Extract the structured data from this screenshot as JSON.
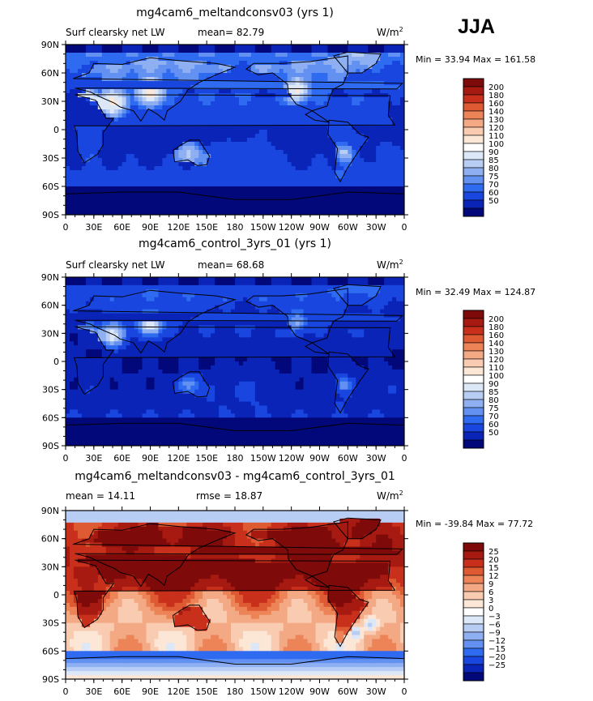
{
  "season": "JJA",
  "colors": {
    "frame": "#000000",
    "coast": "#000000",
    "land_outline": "#111111"
  },
  "chart_data": [
    {
      "type": "heatmap",
      "title": "mg4cam6_meltandconsv03 (yrs 1)",
      "left_label": "Surf clearsky net LW",
      "center_label": "mean=  82.79",
      "units_base": "W/m",
      "units_exp": "2",
      "minmax": "Min =  33.94 Max = 161.58",
      "stats": {
        "mean": 82.79,
        "min": 33.94,
        "max": 161.58
      },
      "ylabels": [
        "90N",
        "60N",
        "30N",
        "0",
        "30S",
        "60S",
        "90S"
      ],
      "xlabels": [
        "0",
        "30E",
        "60E",
        "90E",
        "120E",
        "150E",
        "180",
        "150W",
        "120W",
        "90W",
        "60W",
        "30W",
        "0"
      ],
      "colorbar_labels": [
        "200",
        "180",
        "160",
        "140",
        "130",
        "120",
        "110",
        "100",
        "90",
        "85",
        "80",
        "75",
        "70",
        "60",
        "50"
      ],
      "palette": [
        "#7f0a0a",
        "#a61a12",
        "#c8301c",
        "#de5a32",
        "#ec8458",
        "#f4a985",
        "#f9cbb0",
        "#fce6d6",
        "#ffffff",
        "#dce7f7",
        "#b8cdf4",
        "#8eb0f3",
        "#6391f2",
        "#2f6bf0",
        "#1a46e0",
        "#0b24b8",
        "#02087a"
      ],
      "mode": "lw_sens",
      "base": 55,
      "lat_amp": 24,
      "land_amp": 10
    },
    {
      "type": "heatmap",
      "title": "mg4cam6_control_3yrs_01 (yrs 1)",
      "left_label": "Surf clearsky net LW",
      "center_label": "mean=  68.68",
      "units_base": "W/m",
      "units_exp": "2",
      "minmax": "Min =  32.49 Max = 124.87",
      "stats": {
        "mean": 68.68,
        "min": 32.49,
        "max": 124.87
      },
      "ylabels": [
        "90N",
        "60N",
        "30N",
        "0",
        "30S",
        "60S",
        "90S"
      ],
      "xlabels": [
        "0",
        "30E",
        "60E",
        "90E",
        "120E",
        "150E",
        "180",
        "150W",
        "120W",
        "90W",
        "60W",
        "30W",
        "0"
      ],
      "colorbar_labels": [
        "200",
        "180",
        "160",
        "140",
        "130",
        "120",
        "110",
        "100",
        "90",
        "85",
        "80",
        "75",
        "70",
        "60",
        "50"
      ],
      "palette": [
        "#7f0a0a",
        "#a61a12",
        "#c8301c",
        "#de5a32",
        "#ec8458",
        "#f4a985",
        "#f9cbb0",
        "#fce6d6",
        "#ffffff",
        "#dce7f7",
        "#b8cdf4",
        "#8eb0f3",
        "#6391f2",
        "#2f6bf0",
        "#1a46e0",
        "#0b24b8",
        "#02087a"
      ],
      "mode": "lw_ctrl",
      "base": 50,
      "lat_amp": 20,
      "land_amp": 6
    },
    {
      "type": "heatmap",
      "title": "mg4cam6_meltandconsv03 - mg4cam6_control_3yrs_01",
      "left_label": "mean =  14.11",
      "center_label": "rmse =  18.87",
      "units_base": "W/m",
      "units_exp": "2",
      "minmax": "Min = -39.84 Max =  77.72",
      "stats": {
        "mean": 14.11,
        "rmse": 18.87,
        "min": -39.84,
        "max": 77.72
      },
      "ylabels": [
        "90N",
        "60N",
        "30N",
        "0",
        "30S",
        "60S",
        "90S"
      ],
      "xlabels": [
        "0",
        "30E",
        "60E",
        "90E",
        "120E",
        "150E",
        "180",
        "150W",
        "120W",
        "90W",
        "60W",
        "30W",
        "0"
      ],
      "colorbar_labels": [
        "25",
        "20",
        "15",
        "12",
        "9",
        "6",
        "3",
        "0",
        "−3",
        "−6",
        "−9",
        "−12",
        "−15",
        "−20",
        "−25"
      ],
      "palette": [
        "#7f0a0a",
        "#a61a12",
        "#c8301c",
        "#de5a32",
        "#ec8458",
        "#f4a985",
        "#f9cbb0",
        "#fce6d6",
        "#ffffff",
        "#dce7f7",
        "#b8cdf4",
        "#8eb0f3",
        "#6391f2",
        "#2f6bf0",
        "#1a46e0",
        "#0b24b8",
        "#02087a"
      ],
      "mode": "diff",
      "base": 13,
      "lat_amp": 8,
      "land_amp": 10
    }
  ]
}
